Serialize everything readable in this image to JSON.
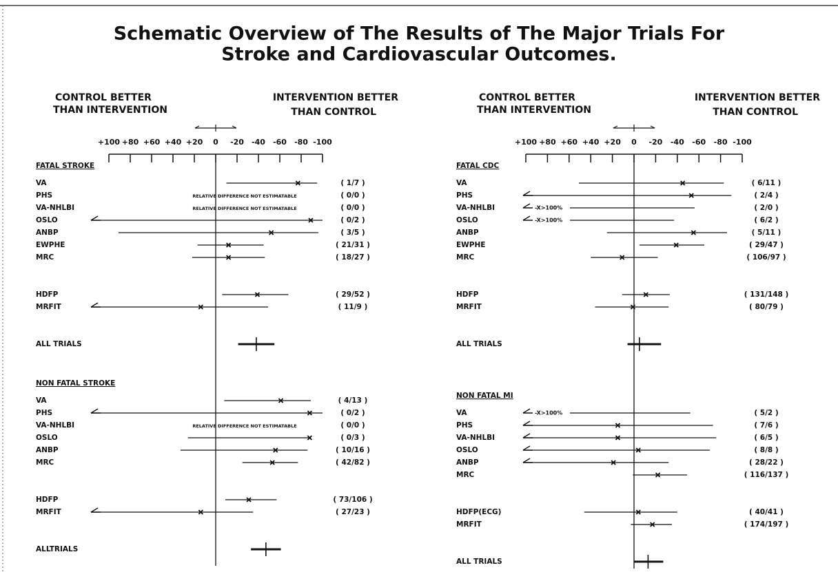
{
  "title": [
    "Schematic Overview of The Results of The Major Trials For",
    "Stroke and Cardiovascular Outcomes."
  ],
  "chart_data": [
    {
      "type": "forest",
      "left_header": [
        "CONTROL BETTER",
        "THAN INTERVENTION"
      ],
      "right_header": [
        "INTERVENTION BETTER",
        "THAN CONTROL"
      ],
      "xlim": [
        100,
        -100
      ],
      "xticks": [
        {
          "value": 100,
          "label": "+100"
        },
        {
          "value": 80,
          "label": "+80"
        },
        {
          "value": 60,
          "label": "+60"
        },
        {
          "value": 40,
          "label": "+40"
        },
        {
          "value": 20,
          "label": "+20"
        },
        0,
        -20,
        -40,
        -60,
        -80,
        -100
      ],
      "sections": [
        {
          "heading": "FATAL STROKE",
          "groups": [
            [
              {
                "label": "VA",
                "value": -77,
                "lower": -95,
                "upper": -10,
                "counts": "( 1/7 )"
              },
              {
                "label": "PHS",
                "value": null,
                "lower": null,
                "upper": null,
                "note": "RELATIVE DIFFERENCE NOT ESTIMATABLE",
                "counts": "( 0/0 )"
              },
              {
                "label": "VA-NHLBI",
                "value": null,
                "lower": null,
                "upper": null,
                "note": "RELATIVE DIFFERENCE NOT ESTIMATABLE",
                "counts": "( 0/0 )"
              },
              {
                "label": "OSLO",
                "value": -89,
                "lower": -100,
                "upper": null,
                "counts": "( 0/2 )"
              },
              {
                "label": "ANBP",
                "value": -52,
                "lower": -96,
                "upper": 91,
                "counts": "( 3/5 )"
              },
              {
                "label": "EWPHE",
                "value": -12,
                "lower": -45,
                "upper": 17,
                "counts": "( 21/31 )"
              },
              {
                "label": "MRC",
                "value": -12,
                "lower": -46,
                "upper": 22,
                "counts": "( 18/27 )"
              }
            ],
            [
              {
                "label": "HDFP",
                "value": -39,
                "lower": -68,
                "upper": -6,
                "counts": "( 29/52 )"
              },
              {
                "label": "MRFIT",
                "value": 14,
                "lower": -49,
                "upper": null,
                "counts": "( 11/9 )"
              }
            ],
            [
              {
                "label": "ALL TRIALS",
                "value": -38,
                "lower": -55,
                "upper": -21
              }
            ]
          ]
        },
        {
          "heading": "NON FATAL STROKE",
          "groups": [
            [
              {
                "label": "VA",
                "value": -61,
                "lower": -89,
                "upper": -8,
                "counts": "( 4/13 )"
              },
              {
                "label": "PHS",
                "value": -88,
                "lower": -100,
                "upper": null,
                "counts": "( 0/2 )"
              },
              {
                "label": "VA-NHLBI",
                "value": null,
                "lower": null,
                "upper": null,
                "note": "RELATIVE DIFFERENCE NOT ESTIMATABLE",
                "counts": "( 0/0 )"
              },
              {
                "label": "OSLO",
                "value": -88,
                "lower": -89,
                "upper": 26,
                "counts": "( 0/3 )"
              },
              {
                "label": "ANBP",
                "value": -56,
                "lower": -86,
                "upper": 33,
                "counts": "( 10/16 )"
              },
              {
                "label": "MRC",
                "value": -53,
                "lower": -77,
                "upper": -25,
                "counts": "( 42/82 )"
              }
            ],
            [
              {
                "label": "HDFP",
                "value": -31,
                "lower": -57,
                "upper": -9,
                "counts": "( 73/106 )"
              },
              {
                "label": "MRFIT",
                "value": 14,
                "lower": -35,
                "upper": null,
                "counts": "( 27/23 )"
              }
            ],
            [
              {
                "label": "ALLTRIALS",
                "value": -47,
                "lower": -61,
                "upper": -33
              }
            ]
          ]
        }
      ]
    },
    {
      "type": "forest",
      "left_header": [
        "CONTROL BETTER",
        "THAN INTERVENTION"
      ],
      "right_header": [
        "INTERVENTION BETTER",
        "THAN CONTROL"
      ],
      "xlim": [
        100,
        -100
      ],
      "xticks": [
        {
          "value": 100,
          "label": "+100"
        },
        {
          "value": 80,
          "label": "+80"
        },
        {
          "value": 60,
          "label": "+60"
        },
        {
          "value": 40,
          "label": "+40"
        },
        {
          "value": 20,
          "label": "+20"
        },
        0,
        -20,
        -40,
        -60,
        -80,
        -100
      ],
      "sections": [
        {
          "heading": "FATAL CDC",
          "groups": [
            [
              {
                "label": "VA",
                "value": -45,
                "lower": -83,
                "upper": 51,
                "counts": "( 6/11 )"
              },
              {
                "label": "PHS",
                "value": -53,
                "lower": -90,
                "upper": null,
                "counts": "( 2/4 )"
              },
              {
                "label": "VA-NHLBI",
                "value": null,
                "lower": -56,
                "upper": null,
                "note": "-X>100%",
                "counts": "( 2/0 )"
              },
              {
                "label": "OSLO",
                "value": null,
                "lower": -37,
                "upper": null,
                "note": "-X>100%",
                "counts": "( 6/2 )"
              },
              {
                "label": "ANBP",
                "value": -55,
                "lower": -86,
                "upper": 25,
                "counts": "( 5/11 )"
              },
              {
                "label": "EWPHE",
                "value": -39,
                "lower": -65,
                "upper": -5,
                "counts": "( 29/47 )"
              },
              {
                "label": "MRC",
                "value": 11,
                "lower": -22,
                "upper": 40,
                "counts": "( 106/97 )"
              }
            ],
            [
              {
                "label": "HDFP",
                "value": -11,
                "lower": -33,
                "upper": 11,
                "counts": "( 131/148 )"
              },
              {
                "label": "MRFIT",
                "value": 1,
                "lower": -32,
                "upper": 36,
                "counts": "( 80/79 )"
              }
            ],
            [
              {
                "label": "ALL TRIALS",
                "value": -5,
                "lower": -25,
                "upper": 6
              }
            ]
          ]
        },
        {
          "heading": "NON FATAL MI",
          "groups": [
            [
              {
                "label": "VA",
                "value": null,
                "lower": -52,
                "upper": null,
                "note": "-X>100%",
                "counts": "( 5/2 )"
              },
              {
                "label": "PHS",
                "value": 15,
                "lower": -73,
                "upper": null,
                "counts": "( 7/6 )"
              },
              {
                "label": "VA-NHLBI",
                "value": 15,
                "lower": -76,
                "upper": null,
                "counts": "( 6/5 )"
              },
              {
                "label": "OSLO",
                "value": -4,
                "lower": -70,
                "upper": null,
                "counts": "( 8/8 )"
              },
              {
                "label": "ANBP",
                "value": 19,
                "lower": -32,
                "upper": null,
                "counts": "( 28/22 )"
              },
              {
                "label": "MRC",
                "value": -22,
                "lower": -49,
                "upper": 1,
                "counts": "( 116/137 )"
              }
            ],
            [
              {
                "label": "HDFP(ECG)",
                "value": -4,
                "lower": -40,
                "upper": 46,
                "counts": "( 40/41 )"
              },
              {
                "label": "MRFIT",
                "value": -17,
                "lower": -35,
                "upper": 3,
                "counts": "( 174/197 )"
              }
            ],
            [
              {
                "label": "ALL TRIALS",
                "value": -13,
                "lower": -27,
                "upper": 0
              }
            ]
          ]
        }
      ]
    }
  ]
}
